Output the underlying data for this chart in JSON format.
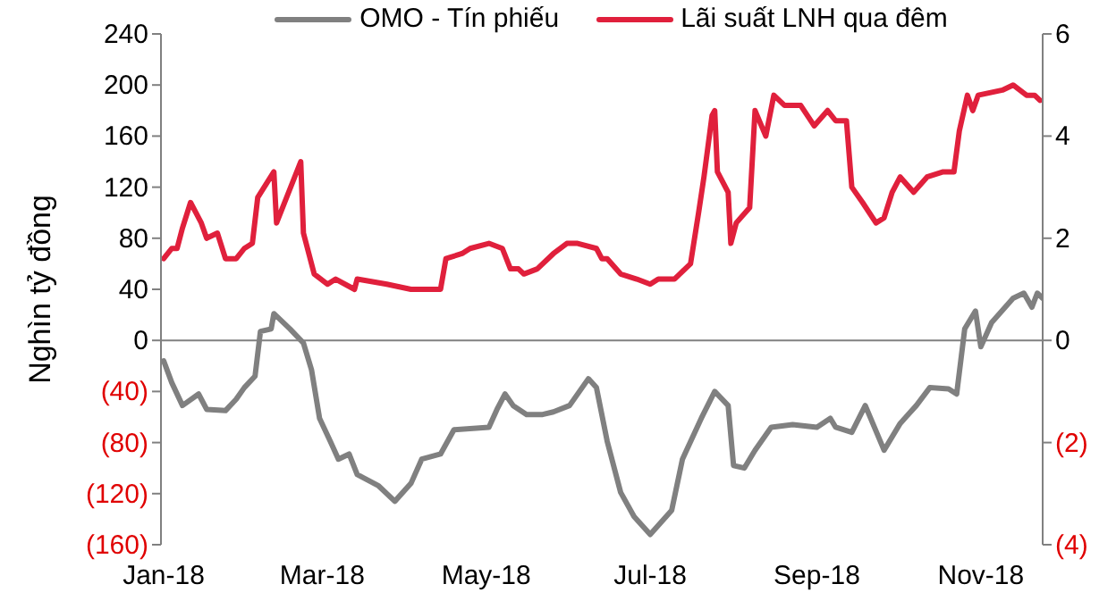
{
  "chart_data": {
    "type": "line",
    "ylabel": "Nghìn tỷ đồng",
    "legend": "top",
    "marker": "none",
    "line_style": "solid",
    "xlim": [
      "2017-12-31",
      "2018-11-24"
    ],
    "xticks": [
      {
        "value": "2018-01-01",
        "label": "Jan-18"
      },
      {
        "value": "2018-03-01",
        "label": "Mar-18"
      },
      {
        "value": "2018-05-01",
        "label": "May-18"
      },
      {
        "value": "2018-07-01",
        "label": "Jul-18"
      },
      {
        "value": "2018-09-01",
        "label": "Sep-18"
      },
      {
        "value": "2018-11-01",
        "label": "Nov-18"
      }
    ],
    "ylim": [
      -160,
      240
    ],
    "yticks": [
      {
        "value": -160,
        "label": "(160)"
      },
      {
        "value": -120,
        "label": "(120)"
      },
      {
        "value": -80,
        "label": "(80)"
      },
      {
        "value": -40,
        "label": "(40)"
      },
      0,
      40,
      80,
      120,
      160,
      200,
      240
    ],
    "y2lim": [
      -4,
      6
    ],
    "y2ticks": [
      {
        "value": -4,
        "label": "(4)"
      },
      {
        "value": -2,
        "label": "(2)"
      },
      0,
      2,
      4,
      6
    ],
    "ref_lines": [
      {
        "axis": "y",
        "value": 0,
        "color": "#808080"
      }
    ],
    "series": [
      {
        "name": "OMO - Tín phiếu",
        "color": "#808080",
        "x": [
          "2018-01-01",
          "2018-01-04",
          "2018-01-08",
          "2018-01-14",
          "2018-01-17",
          "2018-01-24",
          "2018-01-28",
          "2018-01-31",
          "2018-02-04",
          "2018-02-06",
          "2018-02-10",
          "2018-02-11",
          "2018-02-17",
          "2018-02-22",
          "2018-02-25",
          "2018-02-28",
          "2018-03-04",
          "2018-03-07",
          "2018-03-11",
          "2018-03-14",
          "2018-03-22",
          "2018-03-28",
          "2018-04-03",
          "2018-04-07",
          "2018-04-14",
          "2018-04-19",
          "2018-05-02",
          "2018-05-05",
          "2018-05-08",
          "2018-05-11",
          "2018-05-16",
          "2018-05-22",
          "2018-05-26",
          "2018-06-01",
          "2018-06-08",
          "2018-06-11",
          "2018-06-15",
          "2018-06-20",
          "2018-06-25",
          "2018-07-01",
          "2018-07-09",
          "2018-07-13",
          "2018-07-20",
          "2018-07-25",
          "2018-07-30",
          "2018-08-01",
          "2018-08-05",
          "2018-08-09",
          "2018-08-15",
          "2018-08-23",
          "2018-09-01",
          "2018-09-06",
          "2018-09-08",
          "2018-09-14",
          "2018-09-19",
          "2018-09-26",
          "2018-10-02",
          "2018-10-08",
          "2018-10-13",
          "2018-10-20",
          "2018-10-23",
          "2018-10-26",
          "2018-10-30",
          "2018-11-01",
          "2018-11-05",
          "2018-11-13",
          "2018-11-17",
          "2018-11-20",
          "2018-11-22",
          "2018-11-24"
        ],
        "values": [
          -16,
          -33,
          -51,
          -42,
          -54,
          -55,
          -46,
          -37,
          -28,
          7,
          9,
          21,
          9,
          -2,
          -23,
          -61,
          -79,
          -93,
          -89,
          -105,
          -114,
          -126,
          -112,
          -93,
          -89,
          -70,
          -68,
          -54,
          -42,
          -51,
          -58,
          -58,
          -56,
          -51,
          -30,
          -37,
          -79,
          -119,
          -138,
          -152,
          -133,
          -93,
          -61,
          -40,
          -51,
          -98,
          -100,
          -86,
          -68,
          -66,
          -68,
          -61,
          -68,
          -72,
          -51,
          -86,
          -65,
          -51,
          -37,
          -38,
          -42,
          9,
          23,
          -5,
          14,
          33,
          37,
          26,
          37,
          33
        ]
      },
      {
        "name": "Lãi suất LNH qua đêm",
        "color": "#e0203c",
        "axis": "y2",
        "x": [
          "2018-01-01",
          "2018-01-04",
          "2018-01-06",
          "2018-01-08",
          "2018-01-11",
          "2018-01-13",
          "2018-01-15",
          "2018-01-17",
          "2018-01-21",
          "2018-01-24",
          "2018-01-28",
          "2018-01-31",
          "2018-02-03",
          "2018-02-05",
          "2018-02-11",
          "2018-02-12",
          "2018-02-21",
          "2018-02-22",
          "2018-02-26",
          "2018-03-03",
          "2018-03-06",
          "2018-03-13",
          "2018-03-14",
          "2018-03-25",
          "2018-04-03",
          "2018-04-14",
          "2018-04-16",
          "2018-04-22",
          "2018-04-25",
          "2018-05-02",
          "2018-05-07",
          "2018-05-10",
          "2018-05-13",
          "2018-05-15",
          "2018-05-20",
          "2018-05-26",
          "2018-05-31",
          "2018-06-04",
          "2018-06-11",
          "2018-06-13",
          "2018-06-15",
          "2018-06-20",
          "2018-06-26",
          "2018-07-01",
          "2018-07-04",
          "2018-07-10",
          "2018-07-12",
          "2018-07-16",
          "2018-07-19",
          "2018-07-21",
          "2018-07-24",
          "2018-07-25",
          "2018-07-26",
          "2018-07-30",
          "2018-07-31",
          "2018-08-02",
          "2018-08-07",
          "2018-08-09",
          "2018-08-13",
          "2018-08-16",
          "2018-08-20",
          "2018-08-26",
          "2018-08-31",
          "2018-09-05",
          "2018-09-08",
          "2018-09-12",
          "2018-09-14",
          "2018-09-18",
          "2018-09-23",
          "2018-09-26",
          "2018-09-29",
          "2018-10-02",
          "2018-10-07",
          "2018-10-12",
          "2018-10-18",
          "2018-10-22",
          "2018-10-24",
          "2018-10-27",
          "2018-10-29",
          "2018-10-31",
          "2018-11-09",
          "2018-11-13",
          "2018-11-18",
          "2018-11-21",
          "2018-11-23"
        ],
        "values": [
          1.6,
          1.8,
          1.8,
          2.2,
          2.7,
          2.5,
          2.3,
          2.0,
          2.1,
          1.6,
          1.6,
          1.8,
          1.9,
          2.8,
          3.3,
          2.3,
          3.5,
          2.1,
          1.3,
          1.1,
          1.2,
          1.0,
          1.2,
          1.1,
          1.0,
          1.0,
          1.6,
          1.7,
          1.8,
          1.9,
          1.8,
          1.4,
          1.4,
          1.3,
          1.4,
          1.7,
          1.9,
          1.9,
          1.8,
          1.6,
          1.6,
          1.3,
          1.2,
          1.1,
          1.2,
          1.2,
          1.3,
          1.5,
          2.5,
          3.2,
          4.4,
          4.5,
          3.3,
          2.9,
          1.9,
          2.3,
          2.6,
          4.5,
          4.0,
          4.8,
          4.6,
          4.6,
          4.2,
          4.5,
          4.3,
          4.3,
          3.0,
          2.7,
          2.3,
          2.4,
          2.9,
          3.2,
          2.9,
          3.2,
          3.3,
          3.3,
          4.1,
          4.8,
          4.5,
          4.8,
          4.9,
          5.0,
          4.8,
          4.8,
          4.7
        ]
      }
    ]
  }
}
